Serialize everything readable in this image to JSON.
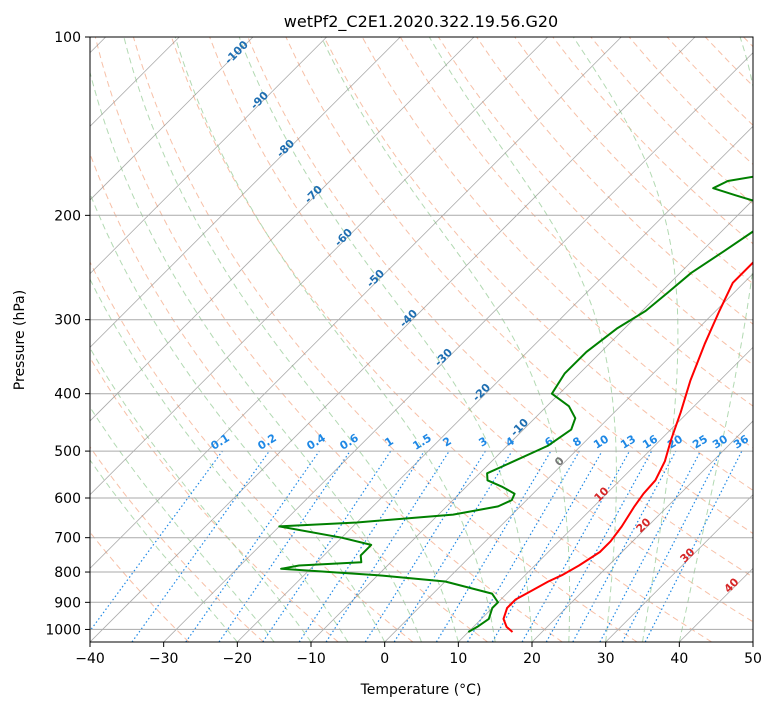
{
  "chart_data": {
    "type": "line",
    "title": "wetPf2_C2E1.2020.322.19.56.G20",
    "xlabel": "Temperature (°C)",
    "ylabel": "Pressure (hPa)",
    "xlim": [
      -40,
      50
    ],
    "ylim": [
      1050,
      100
    ],
    "y_scale": "log",
    "x_ticks": [
      -40,
      -30,
      -20,
      -10,
      0,
      10,
      20,
      30,
      40,
      50
    ],
    "y_ticks": [
      100,
      200,
      300,
      400,
      500,
      600,
      700,
      800,
      900,
      1000
    ],
    "skew": "isotherms slanted 45 degrees",
    "grid": true,
    "series": [
      {
        "color": "#ff0000",
        "points": [
          [
            16,
            1010
          ],
          [
            14.5,
            990
          ],
          [
            13,
            960
          ],
          [
            12,
            920
          ],
          [
            12,
            890
          ],
          [
            13,
            860
          ],
          [
            14,
            830
          ],
          [
            15,
            810
          ],
          [
            16,
            780
          ],
          [
            17,
            740
          ],
          [
            17,
            710
          ],
          [
            16.5,
            670
          ],
          [
            15.5,
            620
          ],
          [
            15,
            590
          ],
          [
            14.8,
            560
          ],
          [
            13.5,
            520
          ],
          [
            11.5,
            480
          ],
          [
            9,
            430
          ],
          [
            6,
            380
          ],
          [
            3,
            330
          ],
          [
            0.5,
            290
          ],
          [
            -1.5,
            260
          ],
          [
            -1.5,
            230
          ],
          [
            -1,
            210
          ],
          [
            1,
            200
          ],
          [
            3.5,
            190
          ],
          [
            5.5,
            180
          ],
          [
            7,
            170
          ],
          [
            8.5,
            160
          ],
          [
            10,
            150
          ],
          [
            10,
            140
          ],
          [
            12,
            130
          ],
          [
            14,
            120
          ],
          [
            15,
            115
          ],
          [
            16,
            110
          ],
          [
            18,
            105
          ],
          [
            19.5,
            100
          ]
        ]
      },
      {
        "color": "#008000",
        "points": [
          [
            10,
            1010
          ],
          [
            10.5,
            990
          ],
          [
            11,
            960
          ],
          [
            10,
            920
          ],
          [
            10,
            900
          ],
          [
            8,
            870
          ],
          [
            0,
            830
          ],
          [
            -10,
            810
          ],
          [
            -24,
            790
          ],
          [
            -22,
            780
          ],
          [
            -14,
            770
          ],
          [
            -15,
            750
          ],
          [
            -15,
            720
          ],
          [
            -20,
            700
          ],
          [
            -30,
            670
          ],
          [
            -20,
            660
          ],
          [
            -8,
            640
          ],
          [
            -3,
            620
          ],
          [
            -2,
            605
          ],
          [
            -2.5,
            590
          ],
          [
            -5,
            575
          ],
          [
            -8,
            560
          ],
          [
            -9,
            545
          ],
          [
            -7,
            520
          ],
          [
            -4.5,
            490
          ],
          [
            -3.5,
            460
          ],
          [
            -4.5,
            440
          ],
          [
            -7,
            420
          ],
          [
            -11,
            400
          ],
          [
            -12,
            370
          ],
          [
            -12,
            340
          ],
          [
            -11,
            310
          ],
          [
            -9.5,
            290
          ],
          [
            -9,
            270
          ],
          [
            -8.5,
            250
          ],
          [
            -7,
            230
          ],
          [
            -5.5,
            210
          ],
          [
            -6.5,
            200
          ],
          [
            -9,
            190
          ],
          [
            -13,
            185
          ],
          [
            -17,
            180
          ],
          [
            -16,
            175
          ],
          [
            -11,
            170
          ],
          [
            -8,
            165
          ],
          [
            -7,
            155
          ],
          [
            -7.5,
            145
          ],
          [
            -8,
            140
          ],
          [
            -7,
            130
          ],
          [
            -4,
            120
          ],
          [
            -1,
            115
          ],
          [
            2,
            110
          ],
          [
            5,
            105
          ],
          [
            6.5,
            100
          ]
        ]
      }
    ],
    "isotherm_labels": [
      "-100",
      "-90",
      "-80",
      "-70",
      "-60",
      "-50",
      "-40",
      "-30",
      "-20",
      "-10",
      "0",
      "10",
      "20",
      "30",
      "40"
    ],
    "mixing_ratio_labels": [
      "0.1",
      "0.2",
      "0.4",
      "0.6",
      "1",
      "1.5",
      "2",
      "3",
      "4",
      "6",
      "8",
      "10",
      "13",
      "16",
      "20",
      "25",
      "30",
      "36"
    ],
    "colors": {
      "temperature": "#ff0000",
      "dewpoint": "#008000",
      "grid": "#aaaaaa",
      "isotherm": "#888888",
      "dry_adiabat": "#f4a582",
      "moist_adiabat": "#9fd09f",
      "mixing_ratio": "#1e88e5",
      "isotherm_label_cold": "#1f6fb2",
      "isotherm_label_warm": "#d62728"
    }
  }
}
